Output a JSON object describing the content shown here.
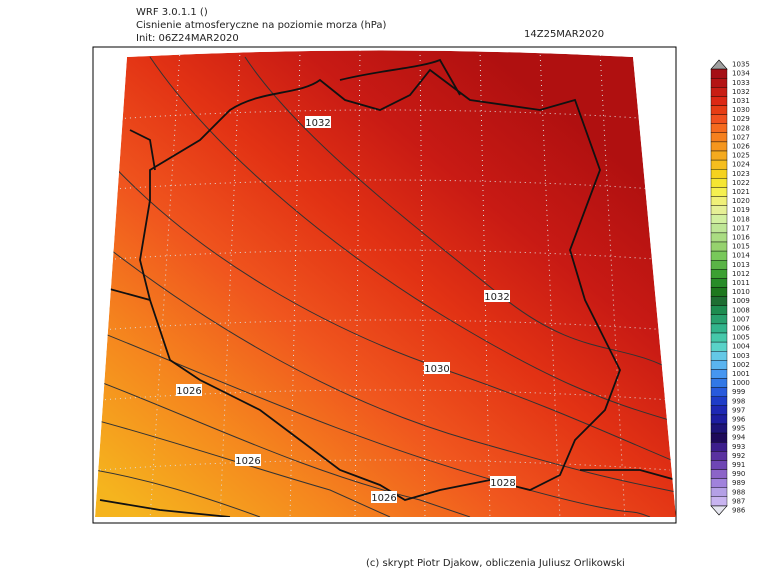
{
  "header": {
    "model": "WRF 3.0.1.1 ()",
    "title": "Cisnienie atmosferyczne na poziomie morza (hPa)",
    "init": "Init: 06Z24MAR2020",
    "valid": "14Z25MAR2020"
  },
  "map": {
    "contour_labels": [
      "1032",
      "1032",
      "1030",
      "1026",
      "1026",
      "1026",
      "1028"
    ]
  },
  "colorbar": {
    "labels": [
      1035,
      1034,
      1033,
      1032,
      1031,
      1030,
      1029,
      1028,
      1027,
      1026,
      1025,
      1024,
      1023,
      1022,
      1021,
      1020,
      1019,
      1018,
      1017,
      1016,
      1015,
      1014,
      1013,
      1012,
      1011,
      1010,
      1009,
      1008,
      1007,
      1006,
      1005,
      1004,
      1003,
      1002,
      1001,
      1000,
      999,
      998,
      997,
      996,
      995,
      994,
      993,
      992,
      991,
      990,
      989,
      988,
      987,
      986
    ],
    "colors": [
      "#a0a0a0",
      "#a50f15",
      "#b41414",
      "#c81e14",
      "#dc2814",
      "#e63c14",
      "#f0501e",
      "#f56a1e",
      "#f5801e",
      "#f5961e",
      "#f5aa1e",
      "#f5be1e",
      "#f5d21e",
      "#f5e632",
      "#f5f050",
      "#f0f078",
      "#e6f096",
      "#d2f0a0",
      "#bee696",
      "#aadc82",
      "#96d26e",
      "#78c85a",
      "#5ab446",
      "#3ca032",
      "#288c28",
      "#1e781e",
      "#1e6e32",
      "#1e8c50",
      "#28a06e",
      "#32b48c",
      "#46c8aa",
      "#5ad2c8",
      "#64c8e6",
      "#5ab4f0",
      "#4696f0",
      "#3278e6",
      "#285adc",
      "#1e3cc8",
      "#1e28b4",
      "#1e1ea0",
      "#1e1478",
      "#1e0a5a",
      "#3c1e8c",
      "#5a32a0",
      "#6e46b4",
      "#8c64c8",
      "#a082dc",
      "#b4a0e6",
      "#c8b4f0",
      "#e6e6f0"
    ]
  },
  "footer": "(c) skrypt Piotr Djakow, obliczenia Juliusz Orlikowski"
}
